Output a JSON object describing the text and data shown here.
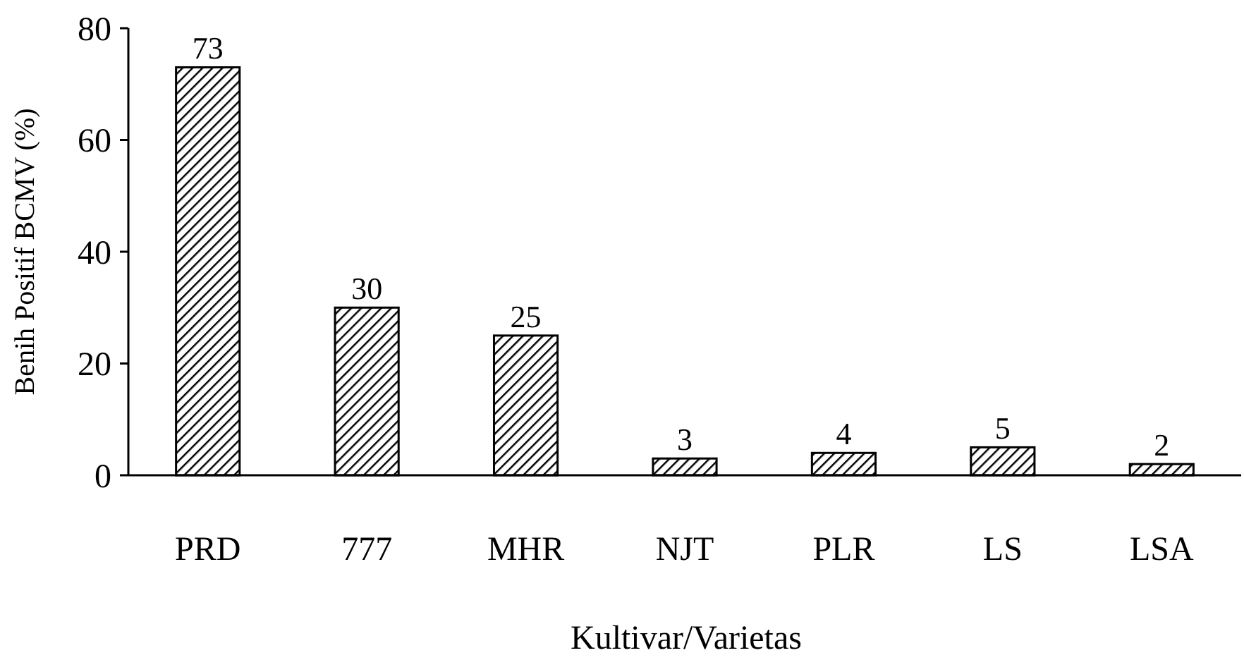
{
  "chart_data": {
    "type": "bar",
    "xlabel": "Kultivar/Varietas",
    "ylabel": "Benih Positif BCMV (%)",
    "categories": [
      "PRD",
      "777",
      "MHR",
      "NJT",
      "PLR",
      "LS",
      "LSA"
    ],
    "values": [
      73,
      30,
      25,
      3,
      4,
      5,
      2
    ],
    "color": "#000000",
    "ylim": [
      0,
      80
    ],
    "yticks": [
      0,
      20,
      40,
      60,
      80
    ],
    "grid": false,
    "data_labels": true
  }
}
